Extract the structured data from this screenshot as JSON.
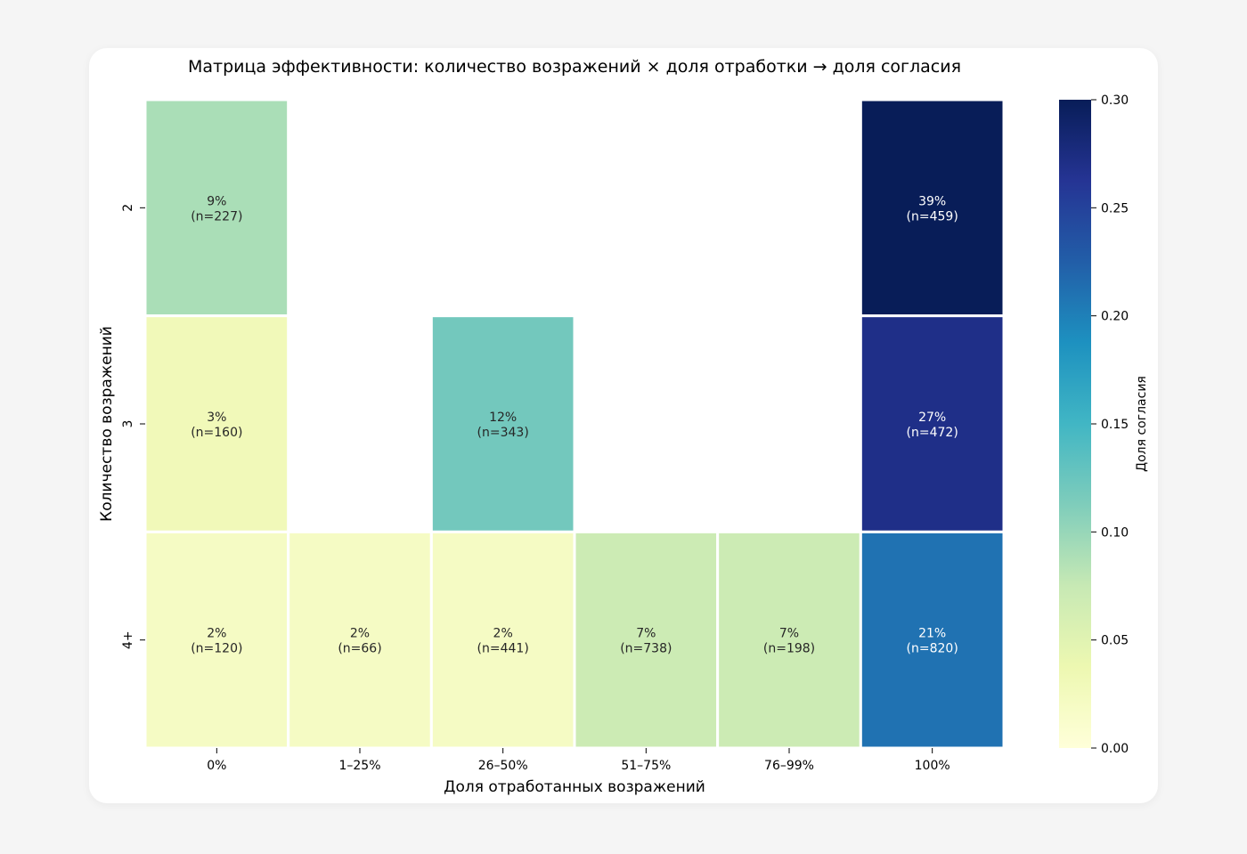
{
  "chart_data": {
    "type": "heatmap",
    "title": "Матрица эффективности: количество возражений × доля отработки → доля согласия",
    "xlabel": "Доля отработанных возражений",
    "ylabel": "Количество возражений",
    "x_categories": [
      "0%",
      "1–25%",
      "26–50%",
      "51–75%",
      "76–99%",
      "100%"
    ],
    "y_categories": [
      "2",
      "3",
      "4+"
    ],
    "values": [
      [
        0.09,
        null,
        null,
        null,
        null,
        0.39
      ],
      [
        0.03,
        null,
        0.12,
        null,
        null,
        0.27
      ],
      [
        0.02,
        0.02,
        0.02,
        0.07,
        0.07,
        0.21
      ]
    ],
    "annotations": [
      [
        [
          "9%",
          "(n=227)"
        ],
        null,
        null,
        null,
        null,
        [
          "39%",
          "(n=459)"
        ]
      ],
      [
        [
          "3%",
          "(n=160)"
        ],
        null,
        [
          "12%",
          "(n=343)"
        ],
        null,
        null,
        [
          "27%",
          "(n=472)"
        ]
      ],
      [
        [
          "2%",
          "(n=120)"
        ],
        [
          "2%",
          "(n=66)"
        ],
        [
          "2%",
          "(n=441)"
        ],
        [
          "7%",
          "(n=738)"
        ],
        [
          "7%",
          "(n=198)"
        ],
        [
          "21%",
          "(n=820)"
        ]
      ]
    ],
    "colormap": "YlGnBu",
    "colorbar": {
      "label": "Доля согласия",
      "range": [
        0,
        0.3
      ],
      "ticks": [
        "0.00",
        "0.05",
        "0.10",
        "0.15",
        "0.20",
        "0.25",
        "0.30"
      ]
    }
  }
}
